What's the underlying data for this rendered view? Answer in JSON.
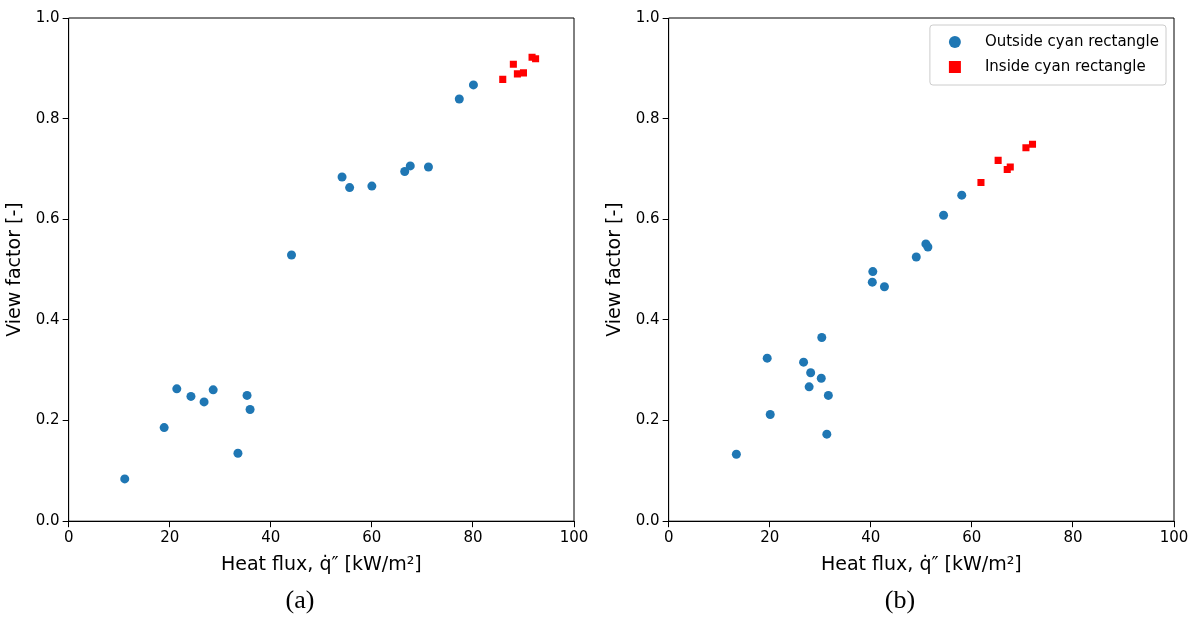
{
  "chart_data": [
    {
      "type": "scatter",
      "xlabel": "Heat flux, q̇″ [kW/m²]",
      "ylabel": "View factor [-]",
      "annotations": [
        "(a)"
      ],
      "xlim": [
        0,
        100
      ],
      "xticks": [
        0,
        20,
        40,
        60,
        80,
        100
      ],
      "ylim": [
        0,
        1
      ],
      "yticks": [
        {
          "value": 0,
          "label": "0.0"
        },
        {
          "value": 0.2,
          "label": "0.2"
        },
        {
          "value": 0.4,
          "label": "0.4"
        },
        {
          "value": 0.6,
          "label": "0.6"
        },
        {
          "value": 0.8,
          "label": "0.8"
        },
        {
          "value": 1,
          "label": "1.0"
        }
      ],
      "grid": false,
      "legend": false,
      "series": [
        {
          "color": "#1f77b4",
          "marker": "circle",
          "x": [
            11.1,
            18.9,
            21.4,
            24.2,
            26.8,
            28.6,
            35.3,
            35.9,
            33.5,
            44.1,
            54.1,
            55.6,
            60.0,
            66.5,
            67.6,
            71.2,
            77.3,
            80.1
          ],
          "values": [
            0.084,
            0.186,
            0.263,
            0.248,
            0.237,
            0.261,
            0.25,
            0.222,
            0.135,
            0.529,
            0.684,
            0.663,
            0.666,
            0.695,
            0.706,
            0.704,
            0.839,
            0.867
          ]
        },
        {
          "color": "#ff0000",
          "marker": "square",
          "x": [
            85.9,
            88.0,
            88.8,
            90.0,
            91.7,
            92.4
          ],
          "values": [
            0.878,
            0.908,
            0.889,
            0.891,
            0.922,
            0.919
          ]
        }
      ]
    },
    {
      "type": "scatter",
      "xlabel": "Heat flux, q̇″ [kW/m²]",
      "ylabel": "View factor [-]",
      "annotations": [
        "(b)"
      ],
      "xlim": [
        0,
        100
      ],
      "xticks": [
        0,
        20,
        40,
        60,
        80,
        100
      ],
      "ylim": [
        0,
        1
      ],
      "yticks": [
        {
          "value": 0,
          "label": "0.0"
        },
        {
          "value": 0.2,
          "label": "0.2"
        },
        {
          "value": 0.4,
          "label": "0.4"
        },
        {
          "value": 0.6,
          "label": "0.6"
        },
        {
          "value": 0.8,
          "label": "0.8"
        },
        {
          "value": 1,
          "label": "1.0"
        }
      ],
      "grid": false,
      "legend": "top right",
      "series": [
        {
          "name": "Outside cyan rectangle",
          "color": "#1f77b4",
          "marker": "circle",
          "x": [
            13.4,
            19.5,
            20.1,
            26.7,
            28.1,
            27.8,
            30.3,
            30.2,
            31.6,
            31.3,
            40.4,
            40.3,
            42.7,
            49.0,
            50.9,
            51.3,
            54.4,
            58.0
          ],
          "values": [
            0.133,
            0.324,
            0.212,
            0.316,
            0.295,
            0.267,
            0.365,
            0.284,
            0.25,
            0.173,
            0.496,
            0.475,
            0.466,
            0.525,
            0.551,
            0.545,
            0.608,
            0.648
          ]
        },
        {
          "name": "Inside cyan rectangle",
          "color": "#ff0000",
          "marker": "square",
          "x": [
            61.8,
            65.2,
            67.0,
            67.6,
            70.7,
            72.0
          ],
          "values": [
            0.673,
            0.717,
            0.699,
            0.704,
            0.742,
            0.749
          ]
        }
      ]
    }
  ]
}
